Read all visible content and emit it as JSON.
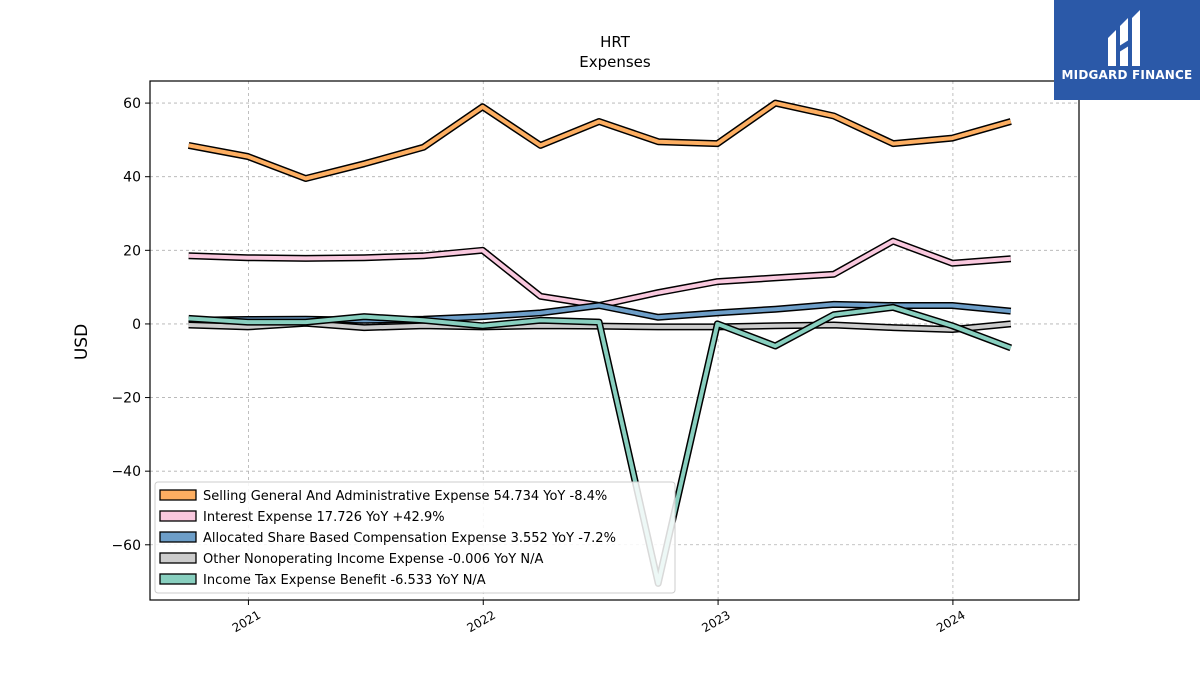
{
  "chart_data": {
    "type": "line",
    "title": "HRT",
    "subtitle": "Expenses",
    "ylabel": "USD",
    "xlabel": "",
    "ylim": [
      -75,
      66
    ],
    "xlim": [
      "2020-08-01",
      "2024-07-15"
    ],
    "yticks": [
      60,
      40,
      20,
      0,
      -20,
      -40,
      -60
    ],
    "ytick_labels": [
      "60",
      "40",
      "20",
      "0",
      "−20",
      "−40",
      "−60"
    ],
    "xticks": [
      "2021-01-01",
      "2022-01-01",
      "2023-01-01",
      "2024-01-01"
    ],
    "xtick_labels": [
      "2021",
      "2022",
      "2023",
      "2024"
    ],
    "grid": true,
    "legend_position": "bottom-left",
    "x": [
      "2020-09-30",
      "2020-12-31",
      "2021-03-31",
      "2021-06-30",
      "2021-09-30",
      "2021-12-31",
      "2022-03-31",
      "2022-06-30",
      "2022-09-30",
      "2022-12-31",
      "2023-03-31",
      "2023-06-30",
      "2023-09-30",
      "2023-12-31",
      "2024-03-31"
    ],
    "series": [
      {
        "name": "Selling General And Administrative Expense",
        "legend": "Selling General And Administrative Expense  54.734 YoY -8.4%",
        "color": "#fdae61",
        "values": [
          48.5,
          45.5,
          39.5,
          43.5,
          48.0,
          59.0,
          48.5,
          55.0,
          49.5,
          49.0,
          60.0,
          56.5,
          49.0,
          50.5,
          55.0
        ]
      },
      {
        "name": "Interest Expense",
        "legend": "Interest Expense  17.726 YoY +42.9%",
        "color": "#f9c8de",
        "values": [
          18.5,
          18.0,
          17.8,
          18.0,
          18.5,
          20.0,
          7.5,
          5.0,
          8.5,
          11.5,
          12.5,
          13.5,
          22.5,
          16.5,
          17.7
        ]
      },
      {
        "name": "Allocated Share Based Compensation Expense",
        "legend": "Allocated Share Based Compensation Expense  3.552 YoY -7.2%",
        "color": "#6d9ec8",
        "values": [
          1.0,
          1.2,
          1.3,
          1.0,
          1.3,
          2.0,
          3.0,
          5.0,
          1.8,
          3.0,
          4.0,
          5.3,
          5.0,
          5.0,
          3.5
        ]
      },
      {
        "name": "Other Nonoperating Income Expense",
        "legend": "Other Nonoperating Income Expense  -0.006 YoY N/A",
        "color": "#cccccc",
        "values": [
          -0.3,
          -0.8,
          0.2,
          -1.0,
          -0.5,
          -0.8,
          -0.5,
          -0.6,
          -0.8,
          -0.8,
          -0.5,
          -0.3,
          -1.0,
          -1.5,
          0.0
        ]
      },
      {
        "name": "Income Tax Expense Benefit",
        "legend": "Income Tax Expense Benefit  -6.533 YoY N/A",
        "color": "#88cfbf",
        "values": [
          1.5,
          0.5,
          0.5,
          2.0,
          1.0,
          -0.5,
          1.0,
          0.5,
          -70.5,
          0.0,
          -6.0,
          2.5,
          4.5,
          -0.5,
          -6.5
        ]
      }
    ]
  },
  "logo": {
    "text": "MIDGARD FINANCE",
    "color": "#2b59a8"
  }
}
